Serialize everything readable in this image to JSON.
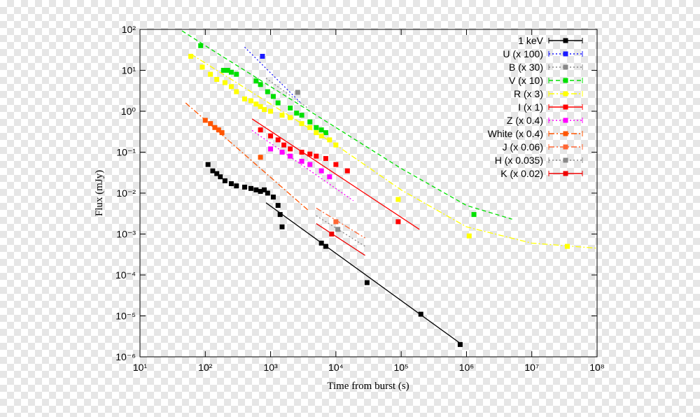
{
  "chart_data": {
    "type": "scatter",
    "log_x": true,
    "log_y": true,
    "x_label": "Time from burst (s)",
    "y_label": "Flux (mJy)",
    "xlim": [
      10,
      100000000
    ],
    "ylim": [
      1e-06,
      100
    ],
    "xticks": [
      {
        "value": 10,
        "label": "10¹"
      },
      {
        "value": 100,
        "label": "10²"
      },
      {
        "value": 1000,
        "label": "10³"
      },
      {
        "value": 10000,
        "label": "10⁴"
      },
      {
        "value": 100000,
        "label": "10⁵"
      },
      {
        "value": 1000000,
        "label": "10⁶"
      },
      {
        "value": 10000000,
        "label": "10⁷"
      },
      {
        "value": 100000000,
        "label": "10⁸"
      }
    ],
    "yticks": [
      {
        "value": 1e-06,
        "label": "10⁻⁶"
      },
      {
        "value": 1e-05,
        "label": "10⁻⁵"
      },
      {
        "value": 0.0001,
        "label": "10⁻⁴"
      },
      {
        "value": 0.001,
        "label": "10⁻³"
      },
      {
        "value": 0.01,
        "label": "10⁻²"
      },
      {
        "value": 0.1,
        "label": "10⁻¹"
      },
      {
        "value": 1,
        "label": "10⁰"
      },
      {
        "value": 10,
        "label": "10¹"
      },
      {
        "value": 100,
        "label": "10²"
      }
    ],
    "series": [
      {
        "name": "1 keV",
        "color": "#000000",
        "line_style": "solid",
        "x": [
          110,
          130,
          150,
          170,
          200,
          250,
          300,
          400,
          500,
          600,
          700,
          800,
          900,
          1100,
          1300,
          1400,
          1500,
          6000,
          7000,
          30000,
          200000,
          800000
        ],
        "values": [
          0.05,
          0.035,
          0.03,
          0.025,
          0.02,
          0.017,
          0.015,
          0.014,
          0.013,
          0.012,
          0.011,
          0.012,
          0.01,
          0.008,
          0.005,
          0.003,
          0.0015,
          0.0006,
          0.0005,
          6.5e-05,
          1.1e-05,
          2e-06
        ],
        "fit_x": [
          850,
          850000
        ],
        "fit_y": [
          0.0058,
          2e-06
        ]
      },
      {
        "name": "U (x 100)",
        "color": "#1a1aff",
        "line_style": "dotted",
        "x": [
          750
        ],
        "values": [
          22
        ],
        "fit_x": [
          400,
          2900
        ],
        "fit_y": [
          37,
          1.6
        ]
      },
      {
        "name": "B (x 30)",
        "color": "#888888",
        "line_style": "dotted",
        "x": [
          2600
        ],
        "values": [
          2.9
        ],
        "fit_x": [
          850,
          3700
        ],
        "fit_y": [
          6.4,
          1.2
        ]
      },
      {
        "name": "V (x 10)",
        "color": "#00e000",
        "line_style": "dashed",
        "x": [
          85,
          190,
          220,
          250,
          300,
          600,
          700,
          900,
          1100,
          1300,
          2000,
          2500,
          3000,
          4000,
          5000,
          6000,
          7000,
          1300000
        ],
        "values": [
          40,
          10,
          10,
          9,
          8,
          5.5,
          4.5,
          3,
          2.3,
          1.6,
          1.2,
          0.9,
          0.8,
          0.55,
          0.4,
          0.35,
          0.3,
          0.003
        ],
        "fit_x": [
          44,
          100,
          1000,
          10000,
          100000,
          1000000,
          5000000
        ],
        "fit_y": [
          92,
          40,
          4,
          0.4,
          0.04,
          0.005,
          0.0023
        ]
      },
      {
        "name": "R (x 3)",
        "color": "#ffff00",
        "line_style": "dashdot",
        "x": [
          60,
          90,
          120,
          150,
          200,
          250,
          300,
          400,
          500,
          600,
          700,
          800,
          1000,
          1500,
          2000,
          3000,
          4000,
          5000,
          6000,
          8000,
          10000,
          90000,
          1100000,
          35000000
        ],
        "values": [
          22,
          12,
          8,
          6,
          5,
          4,
          3,
          2,
          1.8,
          1.5,
          1.3,
          1.1,
          1,
          0.8,
          0.7,
          0.5,
          0.4,
          0.3,
          0.25,
          0.2,
          0.15,
          0.007,
          0.0009,
          0.0005
        ],
        "fit_x": [
          60,
          1000,
          10000,
          100000,
          1000000,
          10000000,
          100000000
        ],
        "fit_y": [
          25,
          1.5,
          0.15,
          0.012,
          0.0015,
          0.0006,
          0.00045
        ]
      },
      {
        "name": "I (x 1)",
        "color": "#ff0000",
        "line_style": "solid",
        "x": [
          700,
          1000,
          1300,
          1600,
          2000,
          3000,
          4000,
          5000,
          7000,
          10000,
          15000,
          90000
        ],
        "values": [
          0.35,
          0.25,
          0.2,
          0.15,
          0.12,
          0.1,
          0.09,
          0.08,
          0.07,
          0.05,
          0.035,
          0.002
        ],
        "fit_x": [
          520,
          190000
        ],
        "fit_y": [
          0.65,
          0.0013
        ]
      },
      {
        "name": "Z (x 0.4)",
        "color": "#ff00ff",
        "line_style": "dotted",
        "x": [
          1000,
          1500,
          2000,
          3000,
          4000,
          6000,
          8000
        ],
        "values": [
          0.12,
          0.1,
          0.08,
          0.06,
          0.05,
          0.035,
          0.025
        ],
        "fit_x": [
          520,
          18500
        ],
        "fit_y": [
          0.34,
          0.0065
        ]
      },
      {
        "name": "White (x 0.4)",
        "color": "#ff5500",
        "line_style": "dashdot",
        "x": [
          100,
          120,
          140,
          160,
          180,
          700
        ],
        "values": [
          0.6,
          0.5,
          0.4,
          0.35,
          0.3,
          0.075
        ],
        "fit_x": [
          50,
          3700
        ],
        "fit_y": [
          1.6,
          0.0039
        ]
      },
      {
        "name": "J (x 0.06)",
        "color": "#ff6633",
        "line_style": "dashdot",
        "x": [
          10000
        ],
        "values": [
          0.002
        ],
        "fit_x": [
          5000,
          28000
        ],
        "fit_y": [
          0.0043,
          0.0008
        ]
      },
      {
        "name": "H (x 0.035)",
        "color": "#888888",
        "line_style": "dotted",
        "x": [
          10700
        ],
        "values": [
          0.0013
        ],
        "fit_x": [
          5000,
          28000
        ],
        "fit_y": [
          0.0028,
          0.0005
        ]
      },
      {
        "name": "K (x 0.02)",
        "color": "#ee0000",
        "line_style": "solid",
        "x": [
          8600
        ],
        "values": [
          0.001
        ],
        "fit_x": [
          5000,
          28000
        ],
        "fit_y": [
          0.0018,
          0.0003
        ]
      }
    ]
  }
}
